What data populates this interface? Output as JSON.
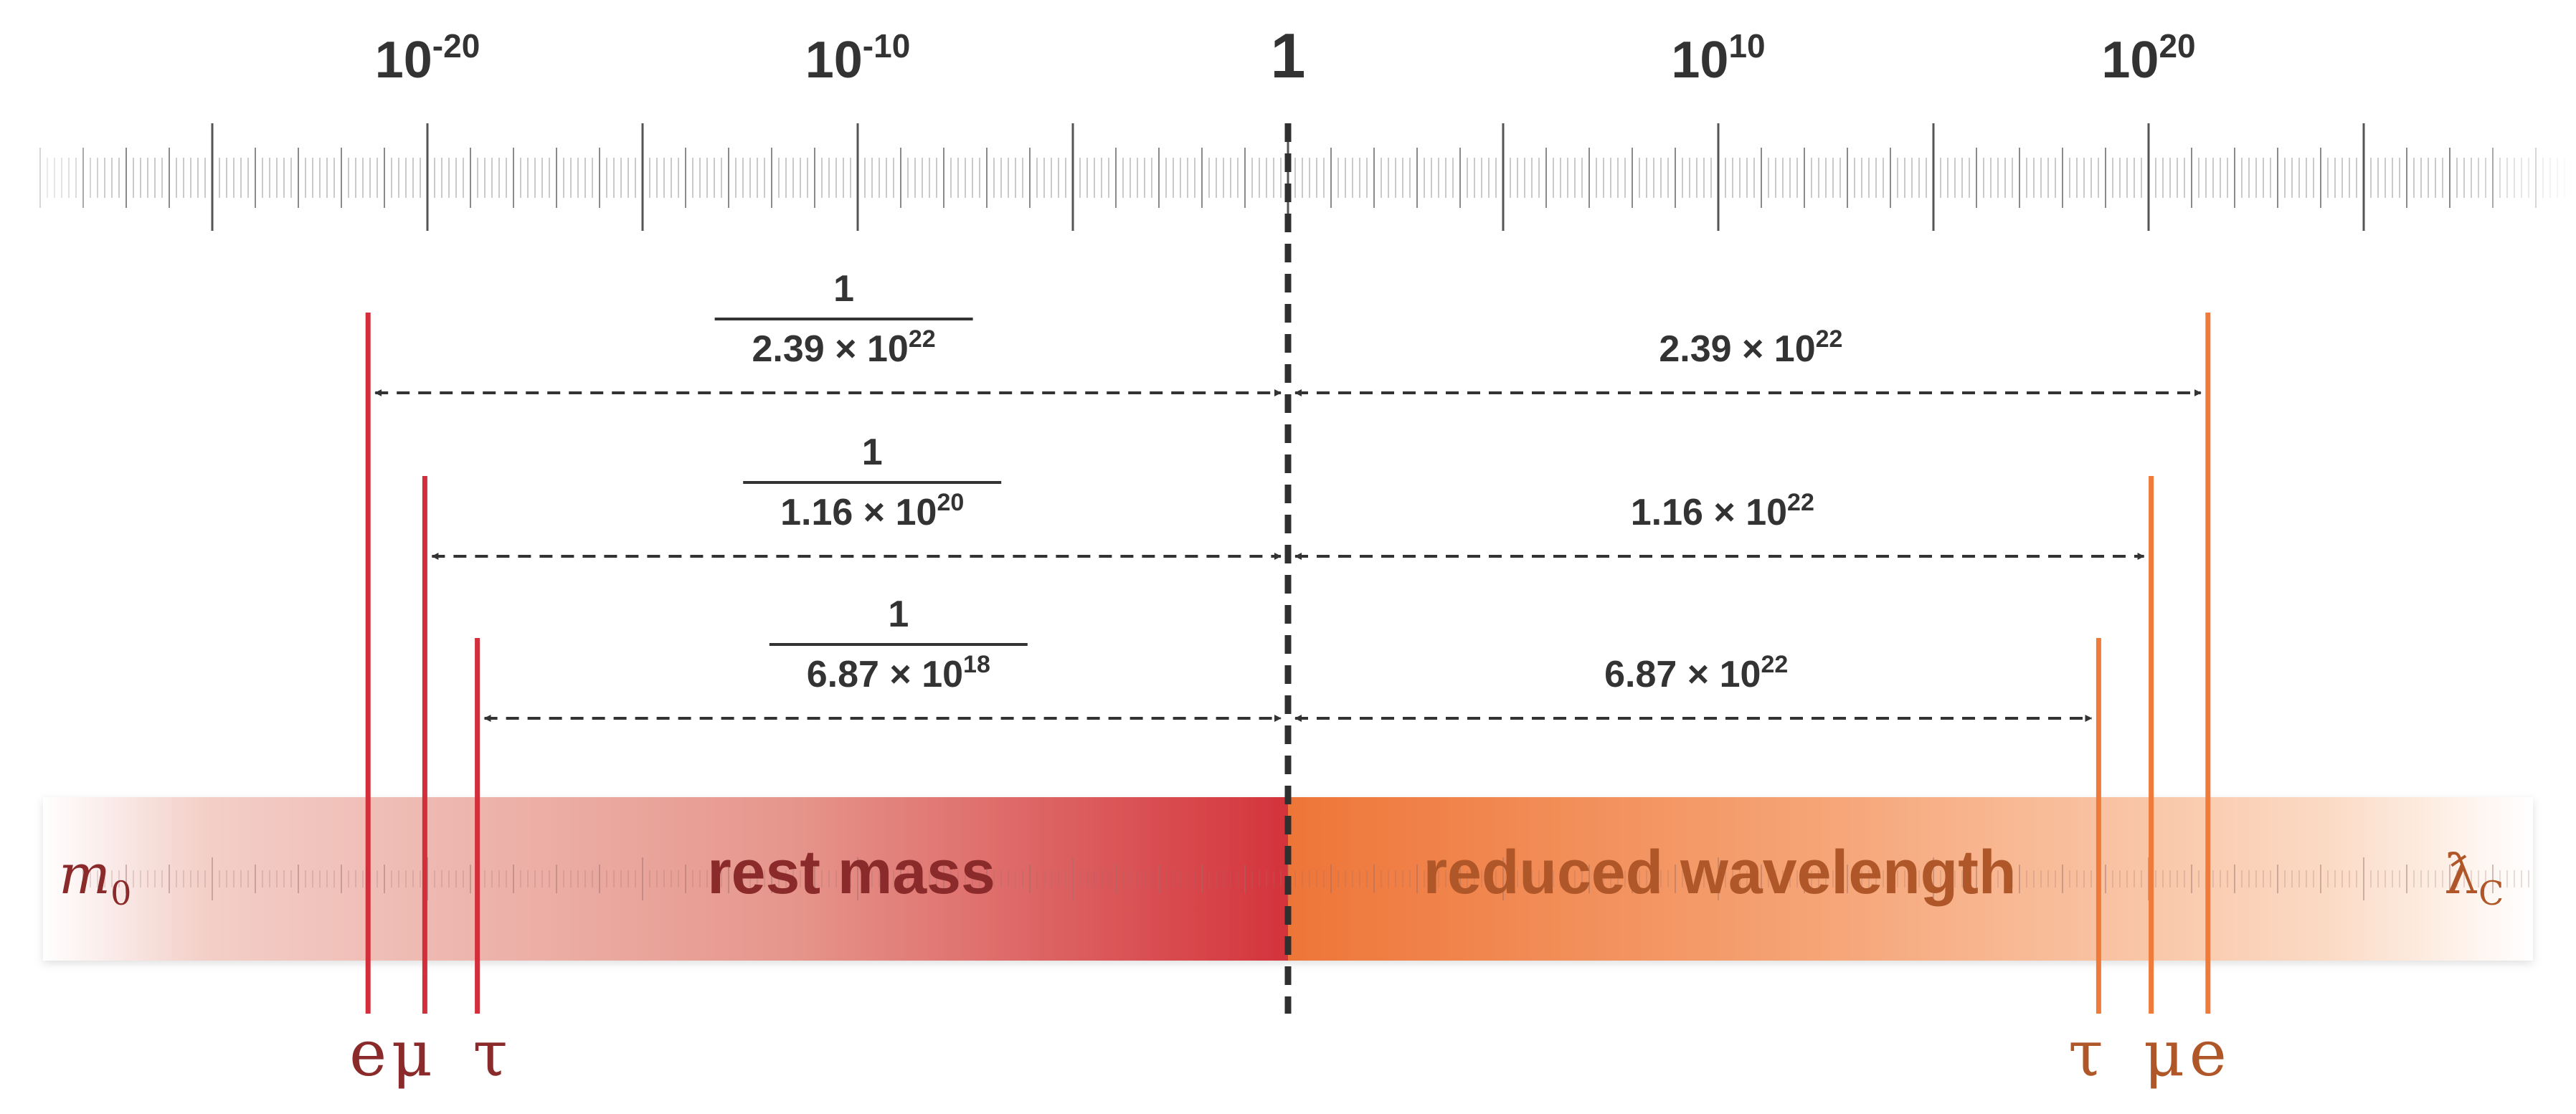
{
  "scale": {
    "labels": [
      {
        "base": "10",
        "exp": "-20",
        "value": -20
      },
      {
        "base": "10",
        "exp": "-10",
        "value": -10
      },
      {
        "base": "1",
        "exp": "",
        "value": 0
      },
      {
        "base": "10",
        "exp": "10",
        "value": 10
      },
      {
        "base": "10",
        "exp": "20",
        "value": 20
      }
    ]
  },
  "band": {
    "left_label": "rest mass",
    "right_label": "reduced wavelength",
    "left_symbol": "m",
    "left_symbol_sub": "0",
    "right_symbol": "ƛ",
    "right_symbol_sub": "C"
  },
  "particles_left": [
    {
      "label": "e",
      "log10": -21.38
    },
    {
      "label": "μ",
      "log10": -20.06
    },
    {
      "label": "τ",
      "log10": -18.84
    }
  ],
  "particles_right": [
    {
      "label": "τ",
      "log10": 18.84
    },
    {
      "label": "μ",
      "log10": 20.06
    },
    {
      "label": "e",
      "log10": 21.38
    }
  ],
  "arrows": [
    {
      "left_numerator": "1",
      "left_coef": "2.39 × 10",
      "left_exp": "22",
      "right_coef": "2.39 × 10",
      "right_exp": "22"
    },
    {
      "left_numerator": "1",
      "left_coef": "1.16 × 10",
      "left_exp": "20",
      "right_coef": "1.16 × 10",
      "right_exp": "22"
    },
    {
      "left_numerator": "1",
      "left_coef": "6.87 × 10",
      "left_exp": "18",
      "right_coef": "6.87 × 10",
      "right_exp": "22"
    }
  ],
  "colors": {
    "left_accent": "#d32f3a",
    "left_label": "#8b2a2a",
    "right_accent": "#ef7a3a",
    "right_label": "#b0572a",
    "text_dark": "#333333"
  }
}
